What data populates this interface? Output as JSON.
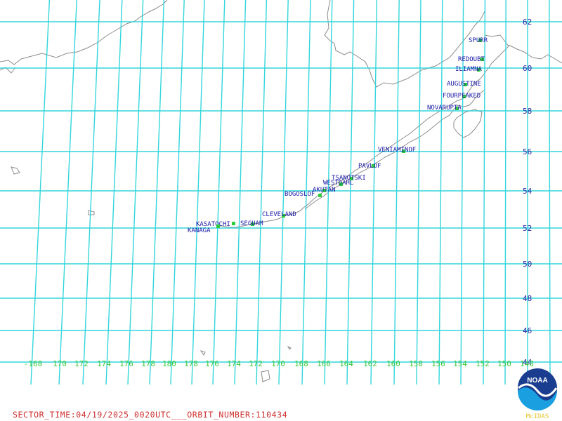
{
  "map": {
    "lat_labels": [
      "62",
      "60",
      "58",
      "56",
      "54",
      "52",
      "50",
      "48",
      "46",
      "44"
    ],
    "lon_labels": [
      "-168",
      "170",
      "172",
      "174",
      "176",
      "178",
      "180",
      "178",
      "176",
      "174",
      "172",
      "170",
      "168",
      "166",
      "164",
      "162",
      "160",
      "158",
      "156",
      "154",
      "152",
      "150",
      "148"
    ],
    "volcanoes": [
      {
        "name": "SPURR"
      },
      {
        "name": "REDOUBT"
      },
      {
        "name": "ILIAMNA"
      },
      {
        "name": "AUGUSTINE"
      },
      {
        "name": "FOURPEAKED"
      },
      {
        "name": "NOVARUPTA"
      },
      {
        "name": "VENIAMINOF"
      },
      {
        "name": "PAVLOF"
      },
      {
        "name": "TSANOTSKI"
      },
      {
        "name": "WESTDAHL"
      },
      {
        "name": "AKUTAN"
      },
      {
        "name": "BOGOSLOF"
      },
      {
        "name": "CLEVELAND"
      },
      {
        "name": "SEGUAM"
      },
      {
        "name": "KASATOCHI"
      },
      {
        "name": "KANAGA"
      }
    ],
    "colors": {
      "grid": "#33d6dc",
      "coast": "#8c8c8c",
      "lon_label": "#39c93c",
      "lat_label": "#2a2aa8",
      "volcano_label": "#1a1aa8",
      "volcano_marker": "#2ccd3a",
      "footer": "#cf2e2e"
    }
  },
  "footer": {
    "text": "SECTOR_TIME:04/19/2025_0020UTC___ORBIT_NUMBER:110434"
  },
  "logo": {
    "text": "NOAA",
    "caption": "McIDAS"
  }
}
